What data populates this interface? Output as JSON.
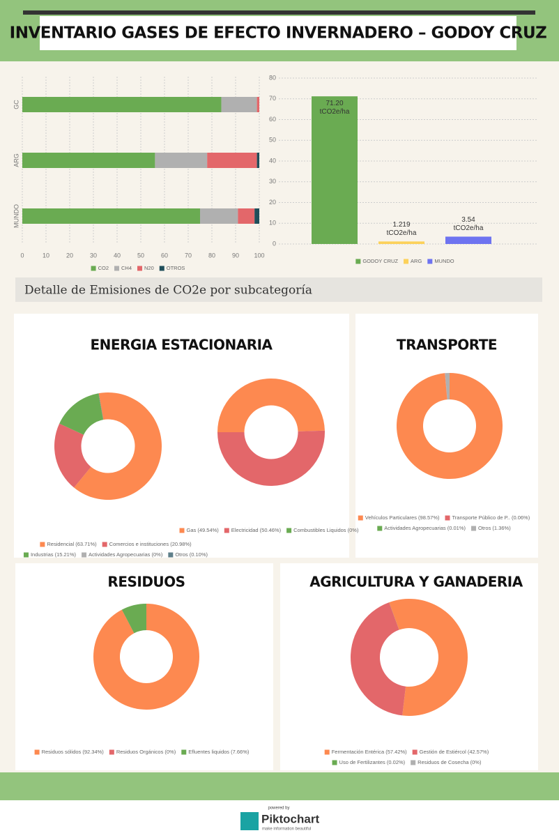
{
  "header": {
    "title": "INVENTARIO GASES DE EFECTO INVERNADERO – GODOY CRUZ"
  },
  "section_title": "Detalle de Emisiones de CO2e por subcategoría",
  "footer": {
    "powered_by": "powered by",
    "brand": "Piktochart",
    "tagline": "make information beautiful"
  },
  "chart_data": [
    {
      "type": "bar",
      "orientation": "horizontal",
      "stacked": true,
      "grid": true,
      "categories": [
        "GC",
        "ARG",
        "MUNDO"
      ],
      "series": [
        {
          "name": "CO2",
          "color": "#6aab52",
          "values": [
            84,
            56,
            75
          ]
        },
        {
          "name": "CH4",
          "color": "#b0b0b0",
          "values": [
            15,
            22,
            16
          ]
        },
        {
          "name": "N20",
          "color": "#e3676a",
          "values": [
            1,
            21,
            7
          ]
        },
        {
          "name": "OTROS",
          "color": "#1f4e5a",
          "values": [
            0,
            1,
            2
          ]
        }
      ],
      "xlim": [
        0,
        100
      ],
      "xticks": [
        0,
        10,
        20,
        30,
        40,
        50,
        60,
        70,
        80,
        90,
        100
      ]
    },
    {
      "type": "bar",
      "grid": true,
      "unit": "tCO2e/ha",
      "categories": [
        "GODOY CRUZ",
        "ARG",
        "MUNDO"
      ],
      "values": [
        71.2,
        1.219,
        3.54
      ],
      "value_labels": [
        "71.20",
        "1.219",
        "3.54"
      ],
      "colors": [
        "#6aab52",
        "#fcd15a",
        "#6e73f0"
      ],
      "ylim": [
        0,
        80
      ],
      "yticks": [
        0,
        10,
        20,
        30,
        40,
        50,
        60,
        70,
        80
      ]
    },
    {
      "type": "pie",
      "donut": true,
      "title": "ENERGIA ESTACIONARIA",
      "categories": [
        "Residencial (63.71%)",
        "Comercios e instituciones (20.98%)",
        "Industrias (15.21%)",
        "Actividades Agropecuarias (0%)",
        "Otros (0.10%)"
      ],
      "values": [
        63.71,
        20.98,
        15.21,
        0,
        0.1
      ],
      "colors": [
        "#fd8950",
        "#e3676a",
        "#6aab52",
        "#b0b0b0",
        "#5f7f8a"
      ]
    },
    {
      "type": "pie",
      "donut": true,
      "categories": [
        "Gas (49.54%)",
        "Electricidad (50.46%)",
        "Combustibles Liquidos (0%)"
      ],
      "values": [
        49.54,
        50.46,
        0
      ],
      "colors": [
        "#fd8950",
        "#e3676a",
        "#6aab52"
      ]
    },
    {
      "type": "pie",
      "donut": true,
      "title": "TRANSPORTE",
      "categories": [
        "Vehículos Particulares (98.57%)",
        "Transporte Público de P.. (0.06%)",
        "Actividades Agropecuarias (0.01%)",
        "Otros (1.36%)"
      ],
      "values": [
        98.57,
        0.06,
        0.01,
        1.36
      ],
      "colors": [
        "#fd8950",
        "#e3676a",
        "#6aab52",
        "#b0b0b0"
      ]
    },
    {
      "type": "pie",
      "donut": true,
      "title": "RESIDUOS",
      "categories": [
        "Residuos sólidos (92.34%)",
        "Residuos Orgánicos (0%)",
        "Efluentes liquidos (7.66%)"
      ],
      "values": [
        92.34,
        0,
        7.66
      ],
      "colors": [
        "#fd8950",
        "#e3676a",
        "#6aab52"
      ]
    },
    {
      "type": "pie",
      "donut": true,
      "title": "AGRICULTURA Y GANADERIA",
      "categories": [
        "Fermentación Entérica (57.42%)",
        "Gestión de Estiércol (42.57%)",
        "Uso de Fertilizantes (0.02%)",
        "Residuos de Cosecha (0%)"
      ],
      "values": [
        57.42,
        42.57,
        0.02,
        0
      ],
      "colors": [
        "#fd8950",
        "#e3676a",
        "#6aab52",
        "#b0b0b0"
      ]
    }
  ]
}
